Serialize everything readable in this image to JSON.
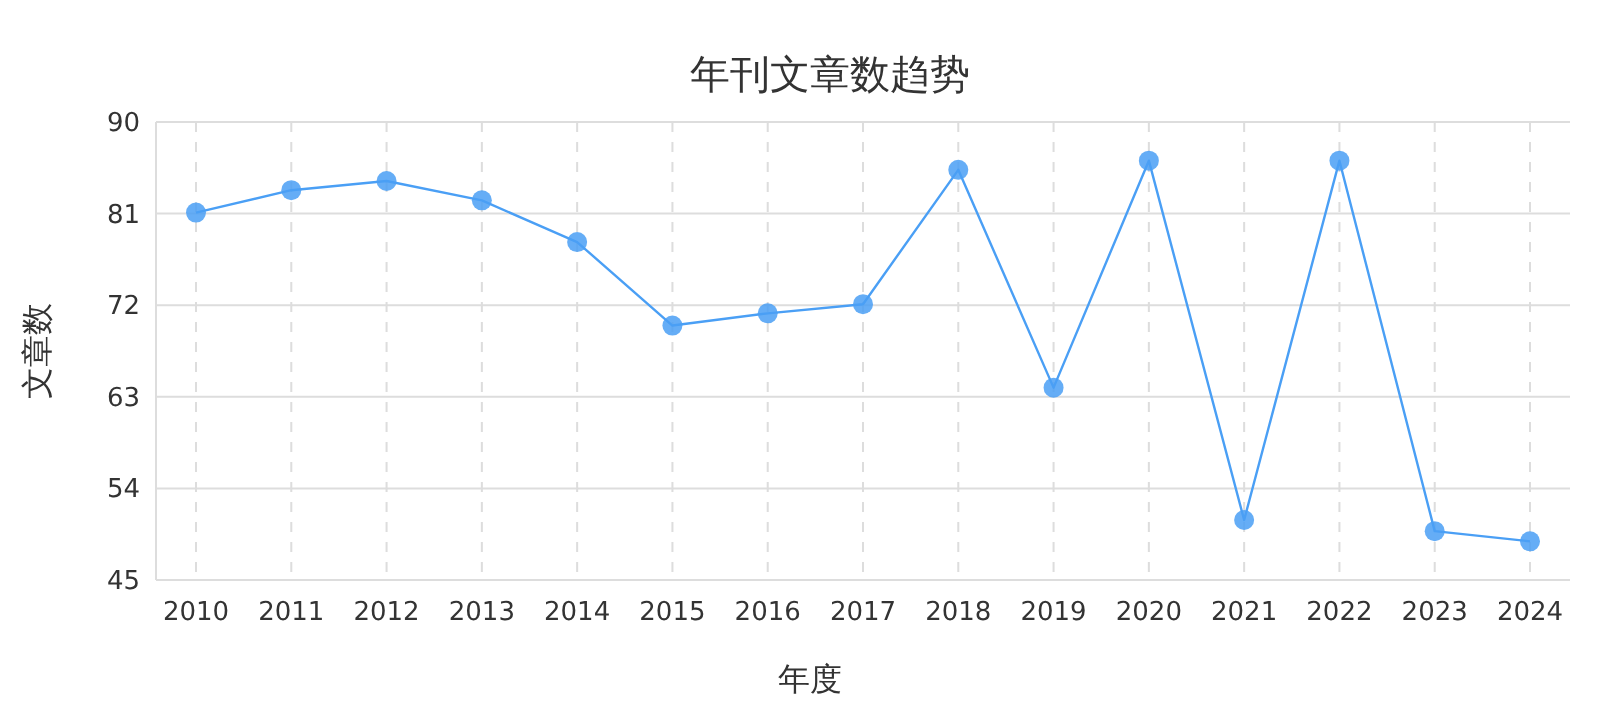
{
  "chart_data": {
    "type": "line",
    "title": "年刊文章数趋势",
    "xlabel": "年度",
    "ylabel": "文章数",
    "categories": [
      "2010",
      "2011",
      "2012",
      "2013",
      "2014",
      "2015",
      "2016",
      "2017",
      "2018",
      "2019",
      "2020",
      "2021",
      "2022",
      "2023",
      "2024"
    ],
    "series": [
      {
        "color": "#4a9ff5",
        "values": [
          81.1,
          83.3,
          84.2,
          82.3,
          78.2,
          70.0,
          71.2,
          72.1,
          85.3,
          63.9,
          86.2,
          50.9,
          86.2,
          49.8,
          48.8
        ]
      }
    ],
    "ylim": [
      45,
      90
    ],
    "yticks": [
      45,
      54,
      63,
      72,
      81,
      90
    ],
    "grid": true,
    "marker": "circle",
    "line_style": "solid"
  }
}
